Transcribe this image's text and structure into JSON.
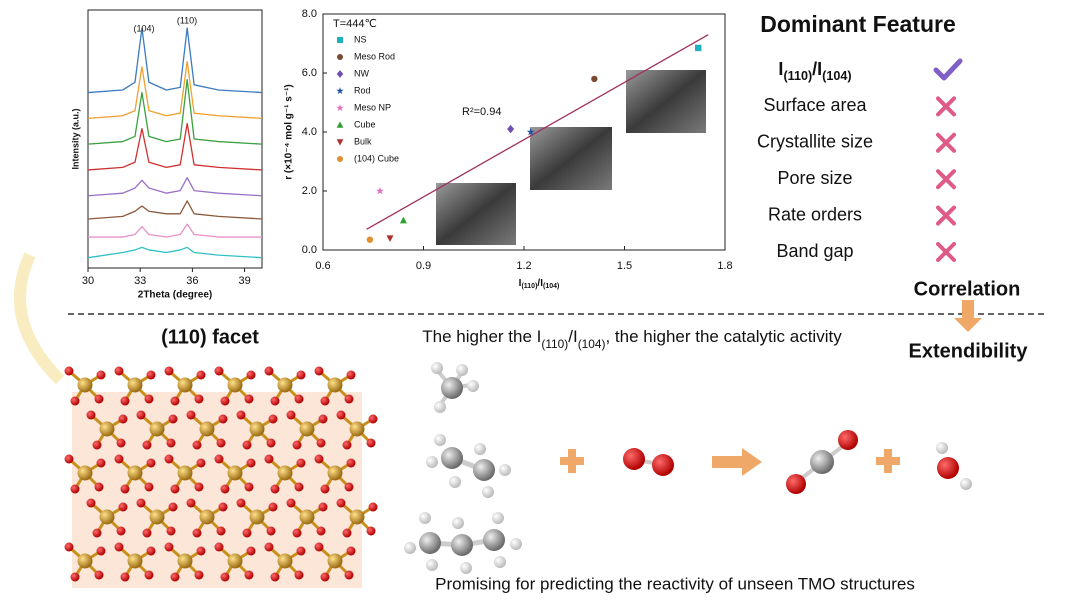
{
  "chart_data": [
    {
      "type": "line",
      "xlabel": "2Theta (degree)",
      "ylabel": "Intensity (a.u.)",
      "annotations": [
        "(104)",
        "(110)"
      ],
      "x": [
        30,
        32,
        32.7,
        33.1,
        33.5,
        34.5,
        35.3,
        35.7,
        36.1,
        37.5,
        40
      ],
      "xlim": [
        30,
        40
      ],
      "xticks": [
        30,
        33,
        36,
        39
      ],
      "ylim": [
        0,
        100
      ],
      "series": [
        {
          "color": "#3b7bbf",
          "values": [
            68,
            69,
            72,
            93,
            72,
            69,
            70,
            93,
            71,
            69,
            68
          ]
        },
        {
          "color": "#f0a030",
          "values": [
            58,
            59,
            61,
            78,
            61,
            59,
            60,
            80,
            60,
            59,
            58
          ]
        },
        {
          "color": "#3aa040",
          "values": [
            48,
            49,
            51,
            68,
            51,
            49,
            50,
            73,
            50,
            49,
            48
          ]
        },
        {
          "color": "#d03030",
          "values": [
            38,
            39,
            41,
            54,
            41,
            39,
            40,
            56,
            40,
            39,
            38
          ]
        },
        {
          "color": "#9a70c8",
          "values": [
            28,
            29,
            31,
            34,
            31,
            29,
            30,
            35,
            30,
            29,
            28
          ]
        },
        {
          "color": "#8b5a3c",
          "values": [
            19,
            20,
            22,
            24,
            22,
            21,
            21,
            26,
            21,
            20,
            19
          ]
        },
        {
          "color": "#e890c8",
          "values": [
            12,
            12,
            13,
            16,
            13,
            12,
            13,
            17,
            13,
            12,
            12
          ]
        },
        {
          "color": "#30c0c8",
          "values": [
            4,
            6,
            7,
            8,
            7,
            6,
            7,
            8,
            6,
            5,
            4
          ]
        }
      ]
    },
    {
      "type": "scatter",
      "xlabel": [
        "I",
        "(110)",
        "/I",
        "(104)"
      ],
      "ylabel": "r (×10⁻⁴ mol g⁻¹ s⁻¹)",
      "annotations": [
        "T=444℃",
        "R²=0.94"
      ],
      "xlim": [
        0.6,
        1.8
      ],
      "xticks": [
        0.6,
        0.9,
        1.2,
        1.5,
        1.8
      ],
      "ylim": [
        0,
        8
      ],
      "yticks": [
        {
          "value": 0,
          "label": "0.0"
        },
        {
          "value": 2,
          "label": "2.0"
        },
        {
          "value": 4,
          "label": "4.0"
        },
        {
          "value": 6,
          "label": "6.0"
        },
        {
          "value": 8,
          "label": "8.0"
        }
      ],
      "series": [
        {
          "name": "NS",
          "color": "#20b0c0",
          "marker": "square",
          "x": [
            1.72
          ],
          "values": [
            6.85
          ]
        },
        {
          "name": "Meso Rod",
          "color": "#7a4a30",
          "marker": "circle",
          "x": [
            1.41
          ],
          "values": [
            5.8
          ]
        },
        {
          "name": "NW",
          "color": "#7050b0",
          "marker": "diamond",
          "x": [
            1.16
          ],
          "values": [
            4.1
          ]
        },
        {
          "name": "Rod",
          "color": "#2050a0",
          "marker": "star",
          "x": [
            1.22
          ],
          "values": [
            4.0
          ]
        },
        {
          "name": "Meso NP",
          "color": "#e070c0",
          "marker": "star",
          "x": [
            0.77
          ],
          "values": [
            2.0
          ]
        },
        {
          "name": "Cube",
          "color": "#30a030",
          "marker": "triangle",
          "x": [
            0.84
          ],
          "values": [
            1.0
          ]
        },
        {
          "name": "Bulk",
          "color": "#b03030",
          "marker": "triangle-down",
          "x": [
            0.8
          ],
          "values": [
            0.4
          ]
        },
        {
          "name": "(104) Cube",
          "color": "#e09030",
          "marker": "circle",
          "x": [
            0.74
          ],
          "values": [
            0.35
          ]
        }
      ],
      "fit": {
        "color": "#a03060",
        "x": [
          0.73,
          1.75
        ],
        "values": [
          0.7,
          7.3
        ]
      }
    }
  ],
  "feature_table": {
    "title": "Dominant Feature",
    "rows": [
      {
        "label": [
          "I",
          "(110)",
          "/I",
          "(104)"
        ],
        "mark": "check"
      },
      {
        "label": "Surface area",
        "mark": "cross"
      },
      {
        "label": "Crystallite size",
        "mark": "cross"
      },
      {
        "label": "Pore size",
        "mark": "cross"
      },
      {
        "label": "Rate orders",
        "mark": "cross"
      },
      {
        "label": "Band gap",
        "mark": "cross"
      }
    ]
  },
  "labels": {
    "correlation": "Correlation",
    "extendibility": "Extendibility",
    "facet": "(110) facet",
    "activity": [
      "The higher the I",
      "(110)",
      "/I",
      "(104)",
      ", the higher the catalytic activity"
    ],
    "promising": "Promising for predicting the reactivity of unseen TMO structures"
  }
}
